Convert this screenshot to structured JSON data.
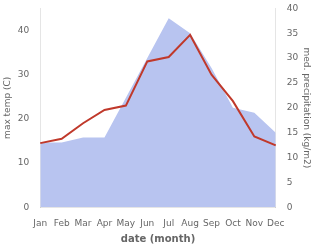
{
  "chart_data": {
    "type": "line",
    "categories": [
      "Jan",
      "Feb",
      "Mar",
      "Apr",
      "May",
      "Jun",
      "Jul",
      "Aug",
      "Sep",
      "Oct",
      "Nov",
      "Dec"
    ],
    "series": [
      {
        "type": "line",
        "color": "#c0392b",
        "values": [
          14.5,
          15.5,
          19,
          22,
          23,
          33,
          34,
          39,
          30,
          24,
          16,
          14
        ]
      },
      {
        "type": "area",
        "axis": "y2",
        "color": "#b8c4f0",
        "values": [
          13,
          13,
          14,
          14,
          22,
          30,
          38,
          35,
          28,
          20,
          19,
          15
        ]
      }
    ],
    "xlabel": "date (month)",
    "ylabel": "max temp (C)",
    "y2label": "med. precipitation (kg/m2)",
    "ylim": [
      0,
      45
    ],
    "yticks": [
      0,
      10,
      20,
      30,
      40
    ],
    "y2lim": [
      0,
      40
    ],
    "y2ticks": [
      0,
      5,
      10,
      15,
      20,
      25,
      30,
      35,
      40
    ],
    "grid": false
  }
}
